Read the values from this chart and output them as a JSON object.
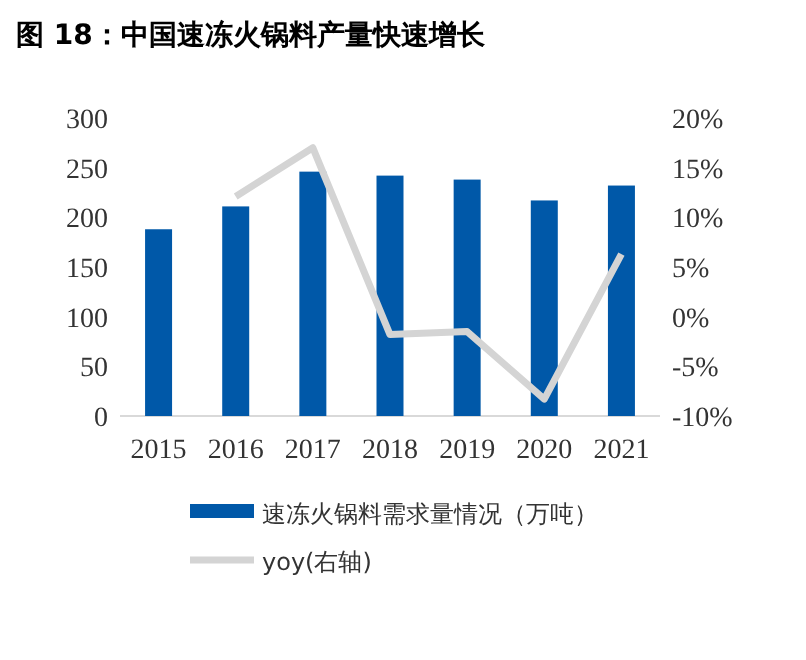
{
  "chart_data": {
    "type": "bar",
    "title": "图 18：中国速冻火锅料产量快速增长",
    "categories": [
      "2015",
      "2016",
      "2017",
      "2018",
      "2019",
      "2020",
      "2021"
    ],
    "series": [
      {
        "name": "速冻火锅料需求量情况（万吨）",
        "color": "#0058a8",
        "values": [
          188,
          211,
          246,
          242,
          238,
          217,
          232
        ]
      },
      {
        "name": "yoy(右轴)",
        "type": "line",
        "axis": "y2",
        "color": "#d4d4d4",
        "values": [
          null,
          12.1,
          17.0,
          -1.8,
          -1.5,
          -8.3,
          6.3
        ]
      }
    ],
    "ylim": [
      0,
      300
    ],
    "yticks": [
      0,
      50,
      100,
      150,
      200,
      250,
      300
    ],
    "y2lim": [
      -10,
      20
    ],
    "y2ticks": [
      {
        "value": -10,
        "label": "-10%"
      },
      {
        "value": -5,
        "label": "-5%"
      },
      {
        "value": 0,
        "label": "0%"
      },
      {
        "value": 5,
        "label": "5%"
      },
      {
        "value": 10,
        "label": "10%"
      },
      {
        "value": 15,
        "label": "15%"
      },
      {
        "value": 20,
        "label": "20%"
      }
    ],
    "grid": false,
    "legend": "bottom"
  }
}
